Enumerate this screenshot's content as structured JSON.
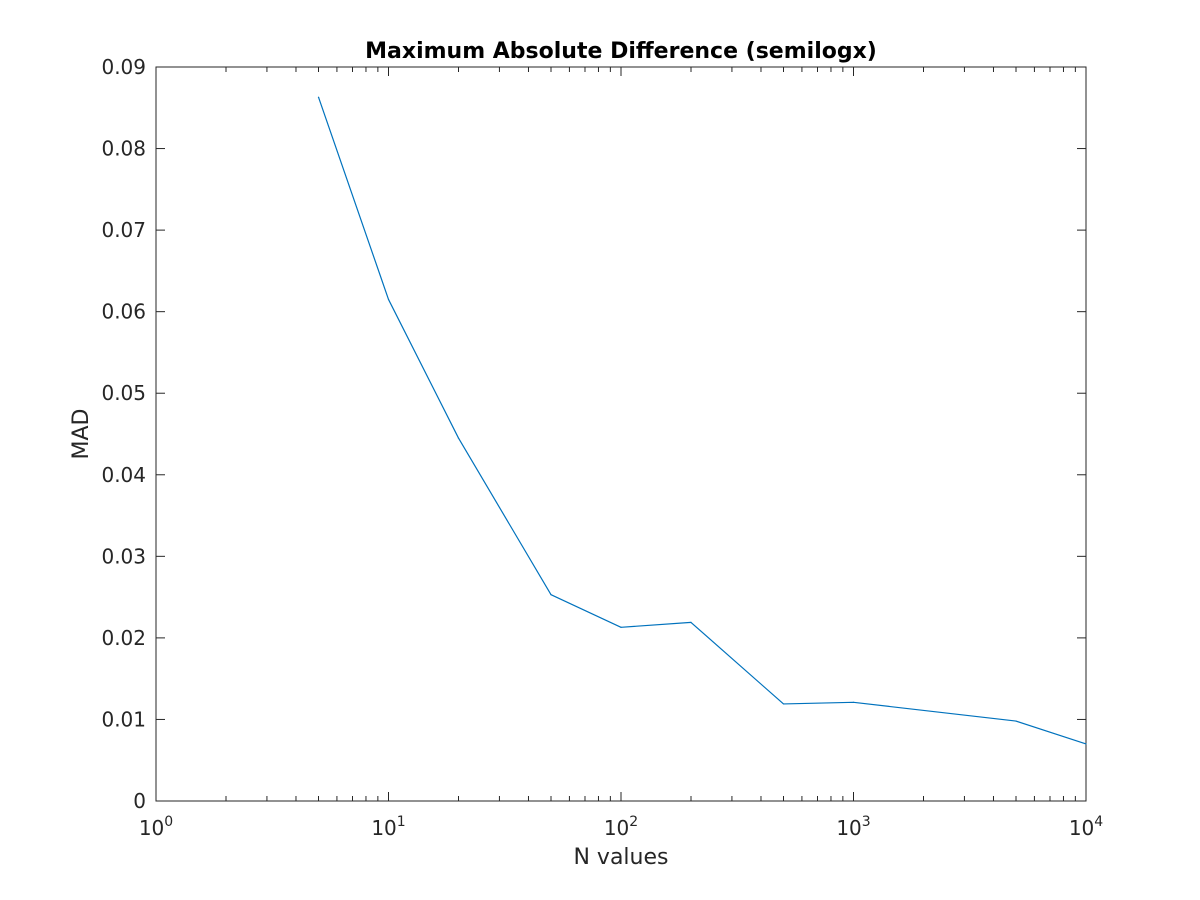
{
  "chart_data": {
    "type": "line",
    "title": "Maximum Absolute Difference (semilogx)",
    "xlabel": "N values",
    "ylabel": "MAD",
    "xscale": "log",
    "xlim": [
      1,
      10000
    ],
    "ylim": [
      0,
      0.09
    ],
    "grid": false,
    "box": true,
    "x_ticks": [
      {
        "value": 1,
        "base": "10",
        "exponent": "0"
      },
      {
        "value": 10,
        "base": "10",
        "exponent": "1"
      },
      {
        "value": 100,
        "base": "10",
        "exponent": "2"
      },
      {
        "value": 1000,
        "base": "10",
        "exponent": "3"
      },
      {
        "value": 10000,
        "base": "10",
        "exponent": "4"
      }
    ],
    "y_ticks": [
      {
        "value": 0,
        "label": "0"
      },
      {
        "value": 0.01,
        "label": "0.01"
      },
      {
        "value": 0.02,
        "label": "0.02"
      },
      {
        "value": 0.03,
        "label": "0.03"
      },
      {
        "value": 0.04,
        "label": "0.04"
      },
      {
        "value": 0.05,
        "label": "0.05"
      },
      {
        "value": 0.06,
        "label": "0.06"
      },
      {
        "value": 0.07,
        "label": "0.07"
      },
      {
        "value": 0.08,
        "label": "0.08"
      },
      {
        "value": 0.09,
        "label": "0.09"
      }
    ],
    "series": [
      {
        "color": "#0072bd",
        "x": [
          5,
          10,
          20,
          50,
          100,
          200,
          500,
          1000,
          5000,
          10000
        ],
        "values": [
          0.0863,
          0.0615,
          0.0445,
          0.0253,
          0.0213,
          0.0219,
          0.0119,
          0.0121,
          0.0098,
          0.007
        ]
      }
    ]
  }
}
